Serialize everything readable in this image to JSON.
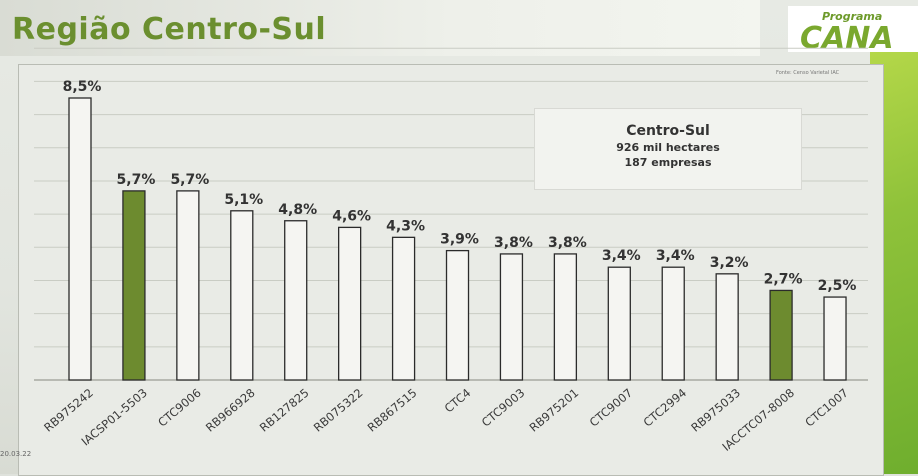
{
  "slide": {
    "title": "Região Centro-Sul",
    "logo_small": "Programa",
    "logo_big": "CANA",
    "source_note": "Fonte: Censo Varietal IAC",
    "footer_mark": "20.03.22"
  },
  "info_box": {
    "title": "Centro-Sul",
    "line1": "926 mil hectares",
    "line2": "187 empresas"
  },
  "colors": {
    "bar_default": "#f5f5f2",
    "bar_highlight": "#6d8b2f",
    "title": "#6b8f2f"
  },
  "chart_data": {
    "type": "bar",
    "categories": [
      "RB975242",
      "IACSP01-5503",
      "CTC9006",
      "RB966928",
      "RB127825",
      "RB075322",
      "RB867515",
      "CTC4",
      "CTC9003",
      "RB975201",
      "CTC9007",
      "CTC2994",
      "RB975033",
      "IACCTC07-8008",
      "CTC1007"
    ],
    "values": [
      8.5,
      5.7,
      5.7,
      5.1,
      4.8,
      4.6,
      4.3,
      3.9,
      3.8,
      3.8,
      3.4,
      3.4,
      3.2,
      2.7,
      2.5
    ],
    "value_labels": [
      "8,5%",
      "5,7%",
      "5,7%",
      "5,1%",
      "4,8%",
      "4,6%",
      "4,3%",
      "3,9%",
      "3,8%",
      "3,8%",
      "3,4%",
      "3,4%",
      "3,2%",
      "2,7%",
      "2,5%"
    ],
    "highlighted": [
      "IACSP01-5503",
      "IACCTC07-8008"
    ],
    "ylim": [
      0,
      10
    ],
    "grid": true,
    "title": "",
    "xlabel": "",
    "ylabel": ""
  }
}
